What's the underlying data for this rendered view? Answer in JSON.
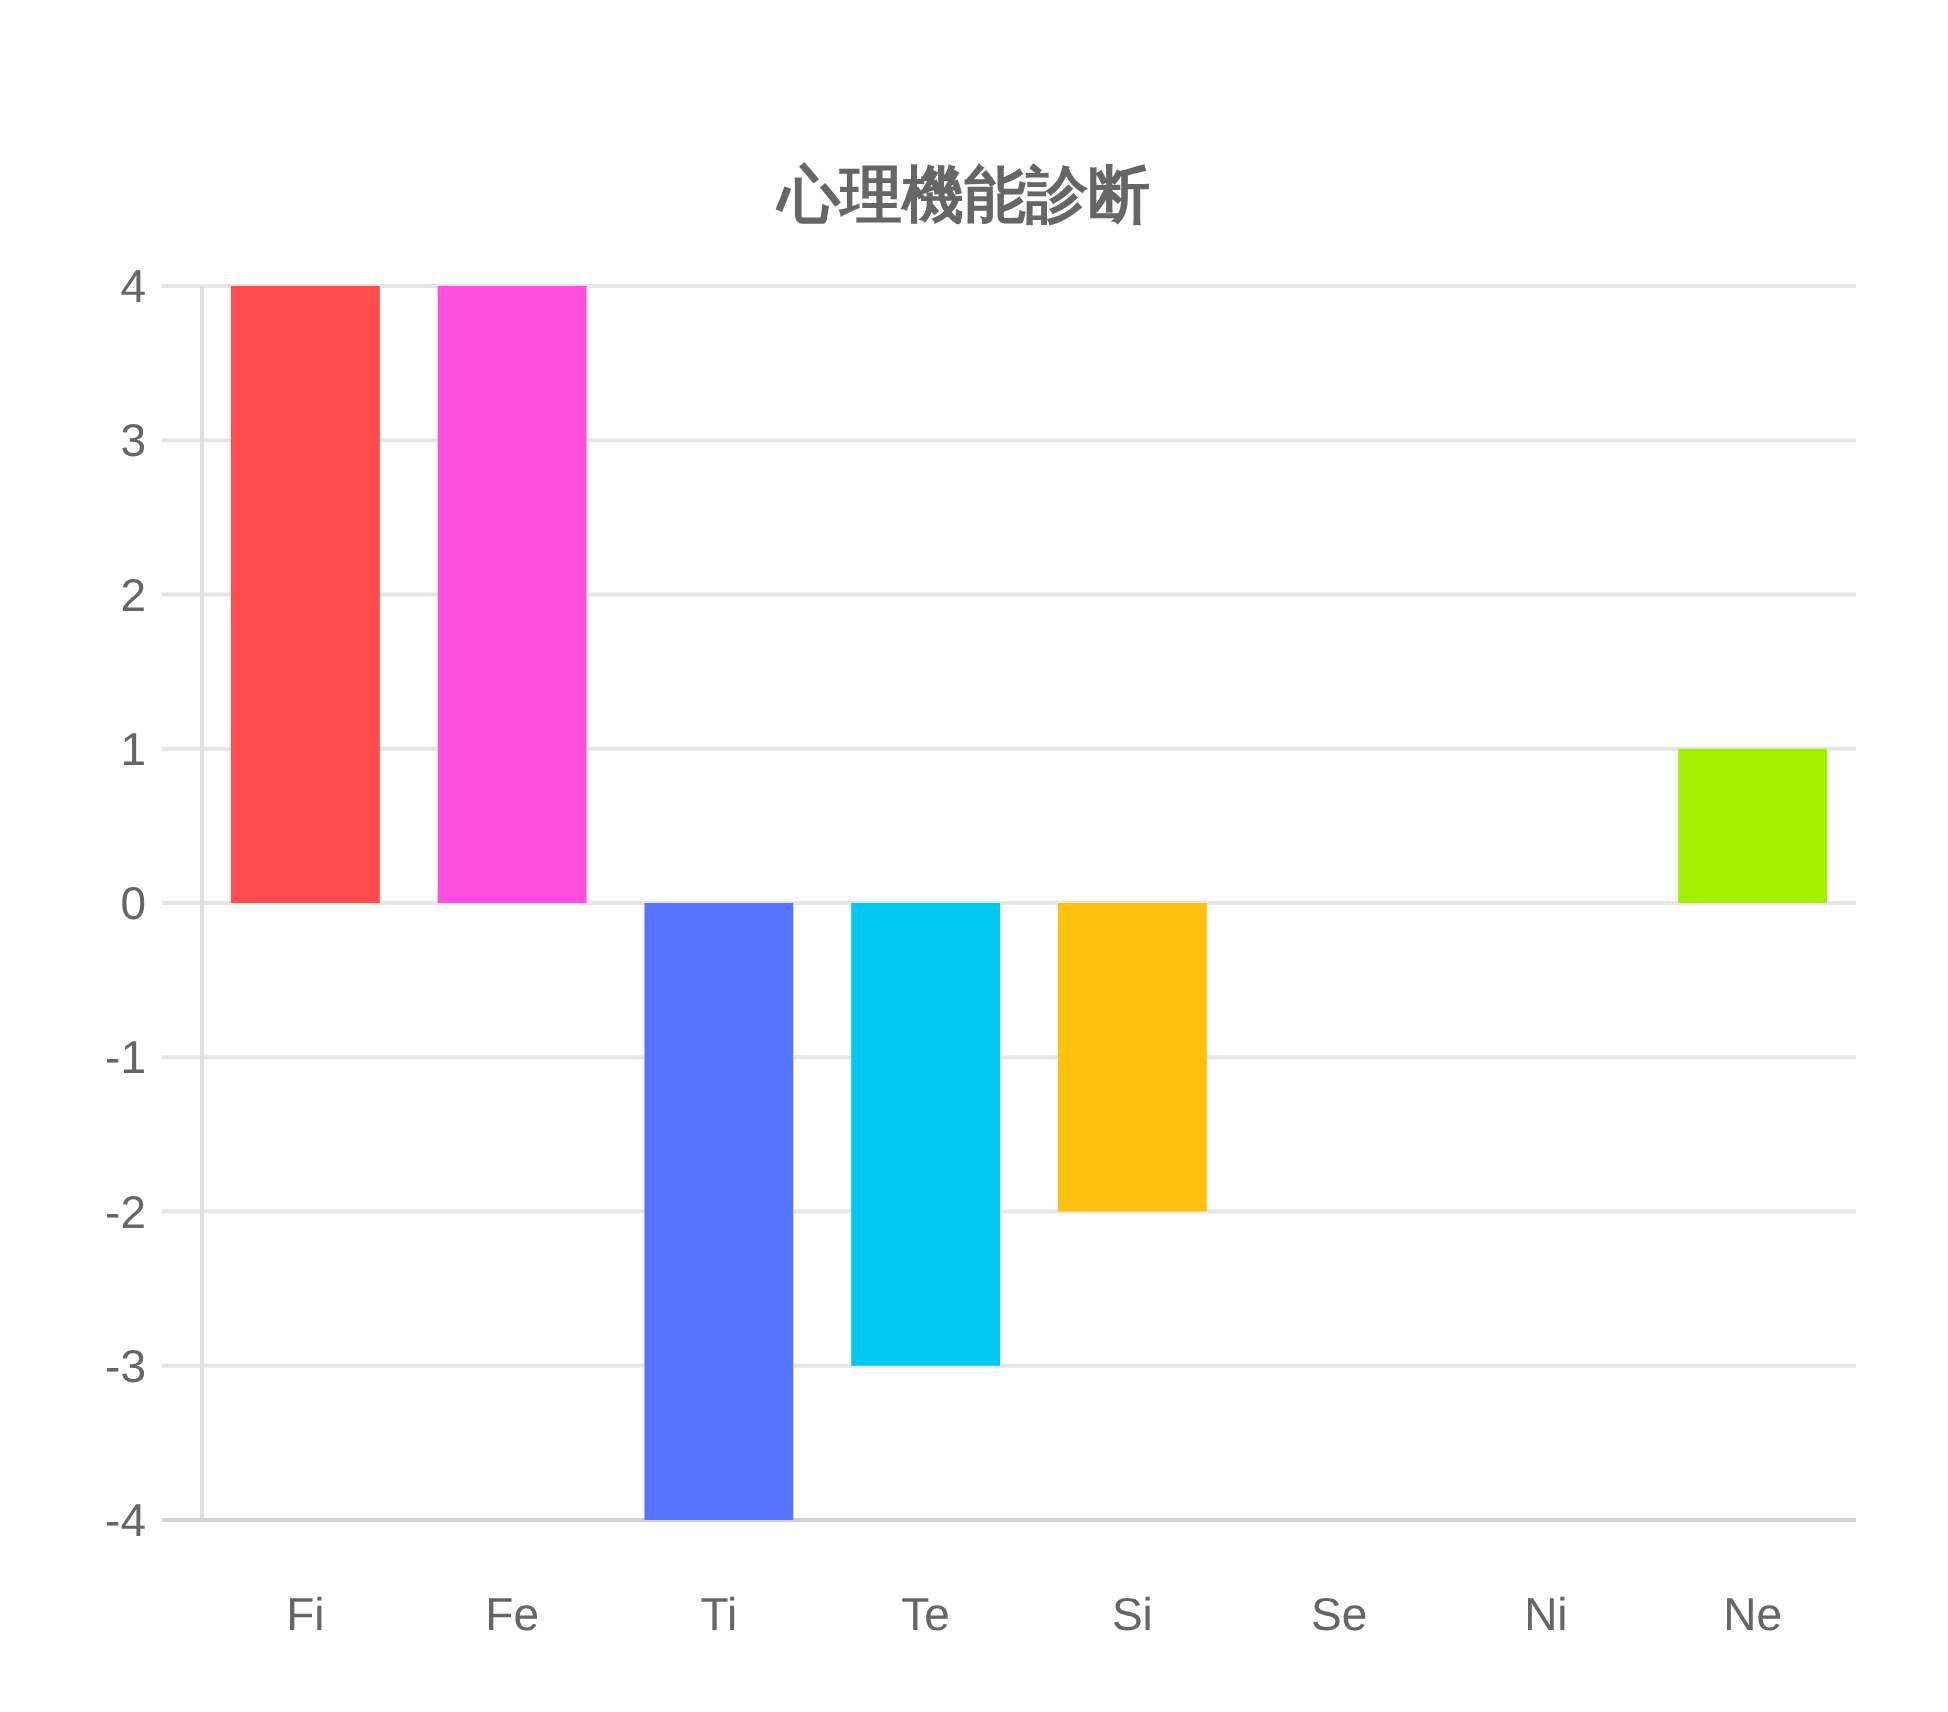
{
  "chart_data": {
    "type": "bar",
    "title": "心理機能診断",
    "categories": [
      "Fi",
      "Fe",
      "Ti",
      "Te",
      "Si",
      "Se",
      "Ni",
      "Ne"
    ],
    "values": [
      4,
      4,
      -4,
      -3,
      -2,
      0,
      0,
      1
    ],
    "colors": [
      "#ff4b4b",
      "#ff4ee0",
      "#5774ff",
      "#00c9f0",
      "#ffc10f",
      null,
      null,
      "#a2f000"
    ],
    "ylim": [
      -4,
      4
    ],
    "yticks": [
      -4,
      -3,
      -2,
      -1,
      0,
      1,
      2,
      3,
      4
    ],
    "grid": "y"
  }
}
